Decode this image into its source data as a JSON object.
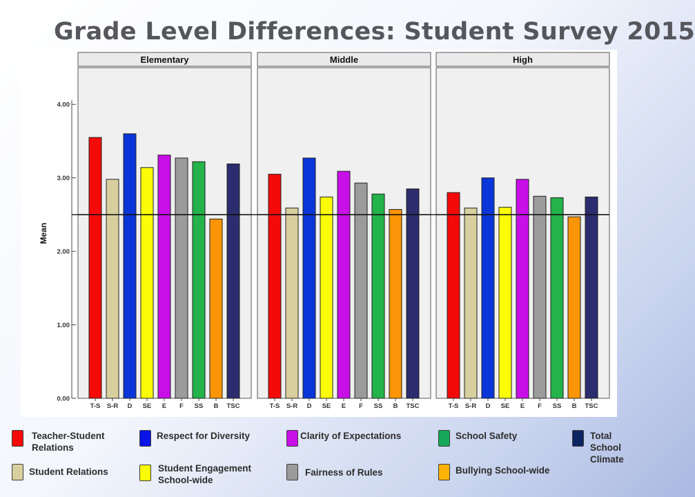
{
  "title": "Grade Level Differences: Student Survey 2015",
  "chart_data": {
    "type": "bar",
    "ylabel": "Mean",
    "ylim": [
      0,
      4.5
    ],
    "yticks": [
      "0.00",
      "1.00",
      "2.00",
      "3.00",
      "4.00"
    ],
    "reference_line": 2.5,
    "categories": [
      "T-S",
      "S-R",
      "D",
      "SE",
      "E",
      "F",
      "SS",
      "B",
      "TSC"
    ],
    "colors": [
      "#f50a0a",
      "#d8cf9e",
      "#0a36d9",
      "#fbfc07",
      "#c80fe8",
      "#9b9b9b",
      "#23b34a",
      "#fb9507",
      "#2b2d6e"
    ],
    "panels": [
      {
        "name": "Elementary",
        "values": [
          3.55,
          2.98,
          3.6,
          3.14,
          3.31,
          3.27,
          3.22,
          2.44,
          3.19
        ]
      },
      {
        "name": "Middle",
        "values": [
          3.05,
          2.59,
          3.27,
          2.74,
          3.09,
          2.93,
          2.78,
          2.57,
          2.85
        ]
      },
      {
        "name": "High",
        "values": [
          2.8,
          2.59,
          3.0,
          2.6,
          2.98,
          2.75,
          2.73,
          2.47,
          2.74
        ]
      }
    ],
    "grid": false
  },
  "legend": [
    {
      "label": "Teacher-Student Relations",
      "color": "#f50a0a"
    },
    {
      "label": "Respect for Diversity",
      "color": "#0a14e6"
    },
    {
      "label": "Clarity of Expectations",
      "color": "#c80fe8"
    },
    {
      "label": "School Safety",
      "color": "#16a85a"
    },
    {
      "label": "Total School Climate",
      "color": "#0c2462"
    },
    {
      "label": "Student Relations",
      "color": "#d8cf9e"
    },
    {
      "label": "Student Engagement School-wide",
      "color": "#fbfc07"
    },
    {
      "label": "Fairness of Rules",
      "color": "#9b9b9b"
    },
    {
      "label": "Bullying School-wide",
      "color": "#fbb207"
    }
  ]
}
